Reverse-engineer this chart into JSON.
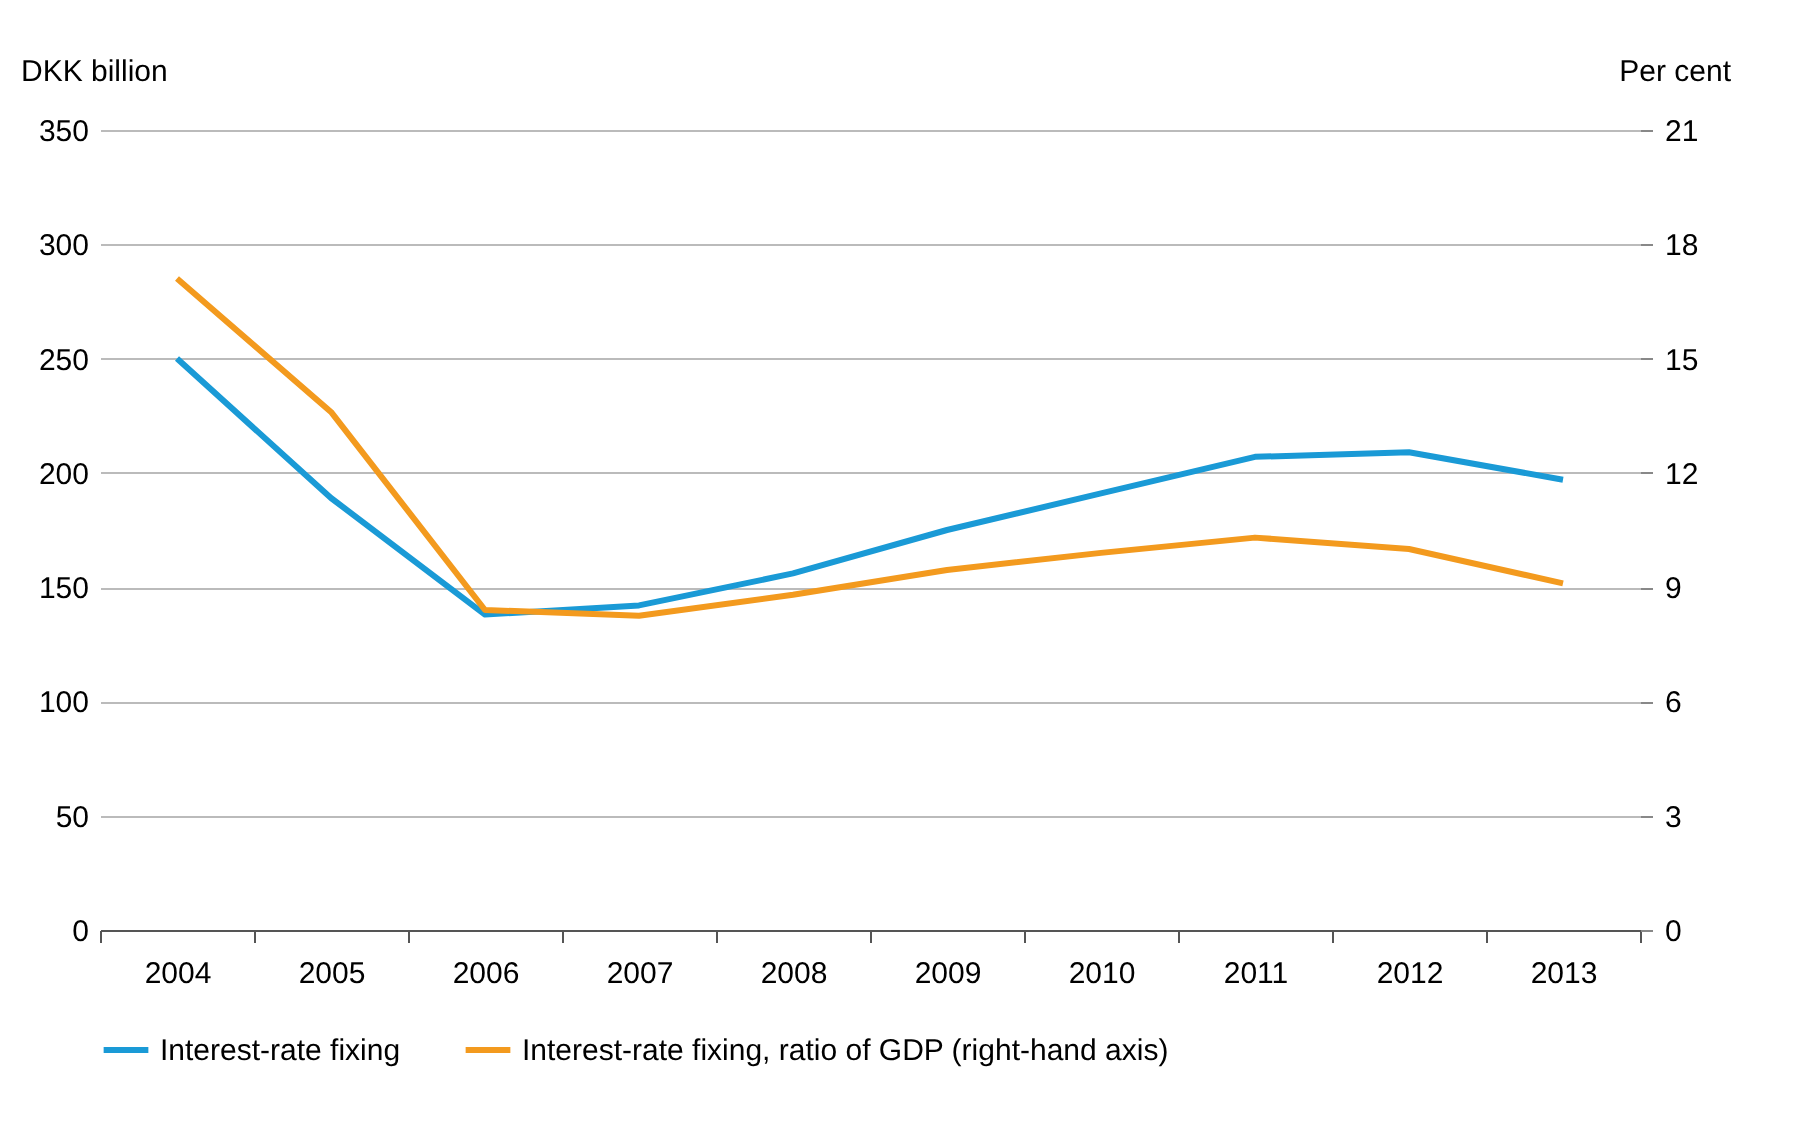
{
  "chart_data": {
    "type": "line",
    "ylabel": "DKK billion",
    "y2label": "Per cent",
    "categories": [
      "2004",
      "2005",
      "2006",
      "2007",
      "2008",
      "2009",
      "2010",
      "2011",
      "2012",
      "2013"
    ],
    "series": [
      {
        "name": "Interest-rate fixing",
        "color": "#1a9ad6",
        "values": [
          250,
          189,
          138,
          142,
          156,
          175,
          191,
          207,
          209,
          197
        ]
      },
      {
        "name": "Interest-rate fixing, ratio of GDP (right-hand axis)",
        "color": "#f39a1e",
        "axis": "y2",
        "values": [
          17.1,
          13.6,
          8.4,
          8.25,
          8.8,
          9.45,
          9.9,
          10.3,
          10.0,
          9.1
        ]
      }
    ],
    "ylim": [
      0,
      350
    ],
    "yticks": [
      0,
      50,
      100,
      150,
      200,
      250,
      300,
      350
    ],
    "y2lim": [
      0,
      21
    ],
    "y2ticks": [
      0,
      3,
      6,
      9,
      12,
      15,
      18,
      21
    ],
    "grid": "y",
    "legend": "bottom",
    "marker": "none",
    "line_style": "solid"
  }
}
